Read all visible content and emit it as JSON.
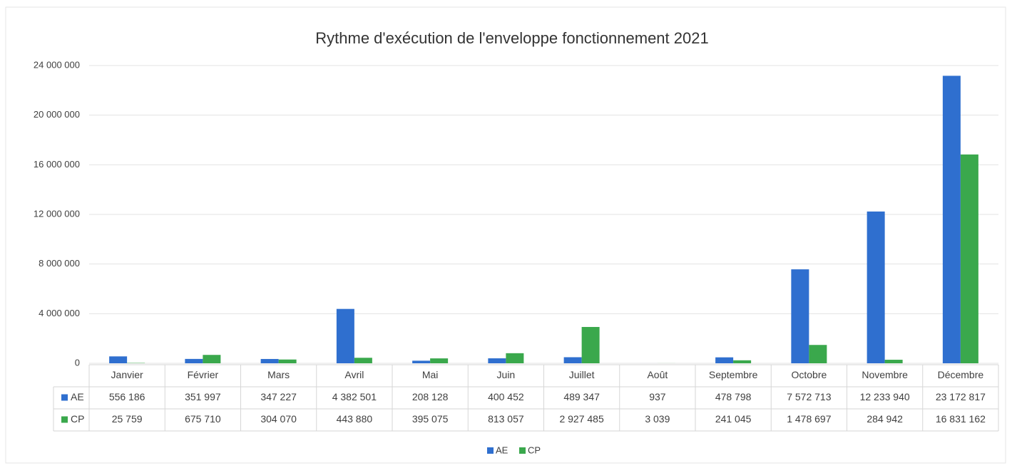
{
  "chart_data": {
    "type": "bar",
    "title": "Rythme d'exécution de l'enveloppe fonctionnement 2021",
    "categories": [
      "Janvier",
      "Février",
      "Mars",
      "Avril",
      "Mai",
      "Juin",
      "Juillet",
      "Août",
      "Septembre",
      "Octobre",
      "Novembre",
      "Décembre"
    ],
    "series": [
      {
        "name": "AE",
        "color": "#2f6fcf",
        "values": [
          556186,
          351997,
          347227,
          4382501,
          208128,
          400452,
          489347,
          937,
          478798,
          7572713,
          12233940,
          23172817
        ],
        "value_labels": [
          "556 186",
          "351 997",
          "347 227",
          "4 382 501",
          "208 128",
          "400 452",
          "489 347",
          "937",
          "478 798",
          "7 572 713",
          "12 233 940",
          "23 172 817"
        ]
      },
      {
        "name": "CP",
        "color": "#3aa84c",
        "values": [
          25759,
          675710,
          304070,
          443880,
          395075,
          813057,
          2927485,
          3039,
          241045,
          1478697,
          284942,
          16831162
        ],
        "value_labels": [
          "25 759",
          "675 710",
          "304 070",
          "443 880",
          "395 075",
          "813 057",
          "2 927 485",
          "3 039",
          "241 045",
          "1 478 697",
          "284 942",
          "16 831 162"
        ]
      }
    ],
    "ylim": [
      0,
      24000000
    ],
    "yticks": [
      0,
      {
        "value": 4000000,
        "label": "4 000 000"
      },
      {
        "value": 8000000,
        "label": "8 000 000"
      },
      {
        "value": 12000000,
        "label": "12 000 000"
      },
      {
        "value": 16000000,
        "label": "16 000 000"
      },
      {
        "value": 20000000,
        "label": "20 000 000"
      },
      {
        "value": 24000000,
        "label": "24 000 000"
      }
    ],
    "grid": true,
    "legend": "bottom"
  }
}
